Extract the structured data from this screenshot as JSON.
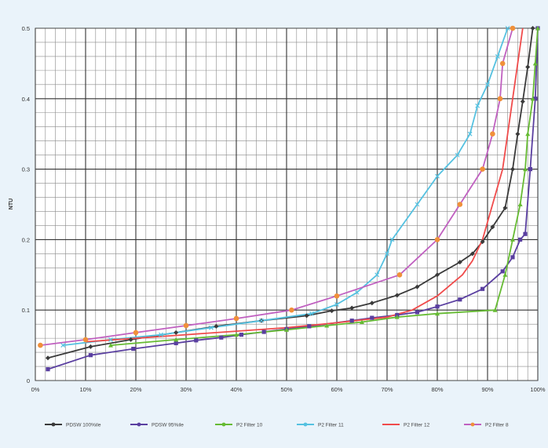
{
  "chart_data": {
    "type": "line",
    "title": "",
    "xlabel": "",
    "ylabel": "NTU",
    "xlim": [
      0,
      100
    ],
    "ylim": [
      0,
      0.5
    ],
    "x_ticks": [
      0,
      10,
      20,
      30,
      40,
      50,
      60,
      70,
      80,
      90,
      100
    ],
    "x_tick_labels": [
      "0%",
      "10%",
      "20%",
      "30%",
      "40%",
      "50%",
      "60%",
      "70%",
      "80%",
      "90%",
      "100%"
    ],
    "y_ticks": [
      0,
      0.1,
      0.2,
      0.3,
      0.4,
      0.5
    ],
    "y_tick_labels": [
      "0",
      "0.1",
      "0.2",
      "0.3",
      "0.4",
      "0.5"
    ],
    "grid": true,
    "legend_position": "bottom",
    "series": [
      {
        "name": "PDSW 100%ile",
        "color": "#3a3a3a",
        "points": [
          [
            2.5,
            0.032
          ],
          [
            11,
            0.048
          ],
          [
            19,
            0.058
          ],
          [
            28,
            0.068
          ],
          [
            36,
            0.077
          ],
          [
            45,
            0.085
          ],
          [
            54,
            0.092
          ],
          [
            59,
            0.099
          ],
          [
            63,
            0.103
          ],
          [
            67,
            0.11
          ],
          [
            72,
            0.121
          ],
          [
            76,
            0.133
          ],
          [
            80,
            0.15
          ],
          [
            84.5,
            0.168
          ],
          [
            87,
            0.18
          ],
          [
            89,
            0.197
          ],
          [
            91,
            0.218
          ],
          [
            93.5,
            0.245
          ],
          [
            95,
            0.3
          ],
          [
            96,
            0.35
          ],
          [
            97,
            0.396
          ],
          [
            98,
            0.445
          ],
          [
            99,
            0.5
          ]
        ]
      },
      {
        "name": "PDSW 95%ile",
        "color": "#5a3fa0",
        "points": [
          [
            2.5,
            0.016
          ],
          [
            11,
            0.036
          ],
          [
            19.5,
            0.045
          ],
          [
            28,
            0.053
          ],
          [
            32,
            0.057
          ],
          [
            37,
            0.061
          ],
          [
            41,
            0.065
          ],
          [
            45.5,
            0.069
          ],
          [
            50,
            0.073
          ],
          [
            54.5,
            0.077
          ],
          [
            63,
            0.085
          ],
          [
            67,
            0.089
          ],
          [
            72,
            0.093
          ],
          [
            76,
            0.097
          ],
          [
            80,
            0.105
          ],
          [
            84.5,
            0.115
          ],
          [
            89,
            0.13
          ],
          [
            93,
            0.155
          ],
          [
            95,
            0.175
          ],
          [
            96.5,
            0.2
          ],
          [
            97.5,
            0.208
          ],
          [
            98.5,
            0.3
          ],
          [
            99.5,
            0.4
          ],
          [
            100,
            0.5
          ]
        ]
      },
      {
        "name": "P2 Filter 10",
        "color": "#66bb33",
        "points": [
          [
            15,
            0.05
          ],
          [
            28,
            0.058
          ],
          [
            40,
            0.065
          ],
          [
            50,
            0.072
          ],
          [
            58,
            0.078
          ],
          [
            65,
            0.083
          ],
          [
            72,
            0.09
          ],
          [
            80,
            0.095
          ],
          [
            91.5,
            0.1
          ],
          [
            93.5,
            0.15
          ],
          [
            95,
            0.2
          ],
          [
            96.5,
            0.25
          ],
          [
            97.5,
            0.3
          ],
          [
            98,
            0.35
          ],
          [
            99,
            0.4
          ],
          [
            99.5,
            0.45
          ],
          [
            100,
            0.5
          ]
        ]
      },
      {
        "name": "P2 Filter 11",
        "color": "#55c1e0",
        "points": [
          [
            5.5,
            0.05
          ],
          [
            15,
            0.058
          ],
          [
            25,
            0.065
          ],
          [
            35,
            0.075
          ],
          [
            45,
            0.085
          ],
          [
            55,
            0.095
          ],
          [
            60,
            0.108
          ],
          [
            64,
            0.125
          ],
          [
            68,
            0.15
          ],
          [
            70,
            0.18
          ],
          [
            71,
            0.2
          ],
          [
            76,
            0.25
          ],
          [
            80,
            0.29
          ],
          [
            84,
            0.32
          ],
          [
            86.5,
            0.35
          ],
          [
            88,
            0.39
          ],
          [
            90,
            0.42
          ],
          [
            92,
            0.46
          ],
          [
            94,
            0.5
          ]
        ]
      },
      {
        "name": "P2 Filter 12",
        "color": "#f04b4b",
        "points": [
          [
            10,
            0.055
          ],
          [
            20,
            0.06
          ],
          [
            30,
            0.065
          ],
          [
            40,
            0.07
          ],
          [
            50,
            0.075
          ],
          [
            60,
            0.082
          ],
          [
            70,
            0.09
          ],
          [
            75,
            0.1
          ],
          [
            80,
            0.12
          ],
          [
            85,
            0.15
          ],
          [
            87,
            0.17
          ],
          [
            89,
            0.2
          ],
          [
            91,
            0.25
          ],
          [
            93,
            0.3
          ],
          [
            94,
            0.35
          ],
          [
            95,
            0.4
          ],
          [
            96,
            0.45
          ],
          [
            97,
            0.5
          ]
        ]
      },
      {
        "name": "P2 Filter 8",
        "color": "#c060c0",
        "marker_color": "#f0903a",
        "points": [
          [
            1,
            0.05
          ],
          [
            10,
            0.058
          ],
          [
            20,
            0.068
          ],
          [
            30,
            0.078
          ],
          [
            40,
            0.088
          ],
          [
            51,
            0.1
          ],
          [
            60,
            0.12
          ],
          [
            72.5,
            0.15
          ],
          [
            80,
            0.2
          ],
          [
            84.5,
            0.25
          ],
          [
            89,
            0.3
          ],
          [
            91,
            0.35
          ],
          [
            92.5,
            0.4
          ],
          [
            93,
            0.45
          ],
          [
            95,
            0.5
          ]
        ]
      }
    ]
  }
}
